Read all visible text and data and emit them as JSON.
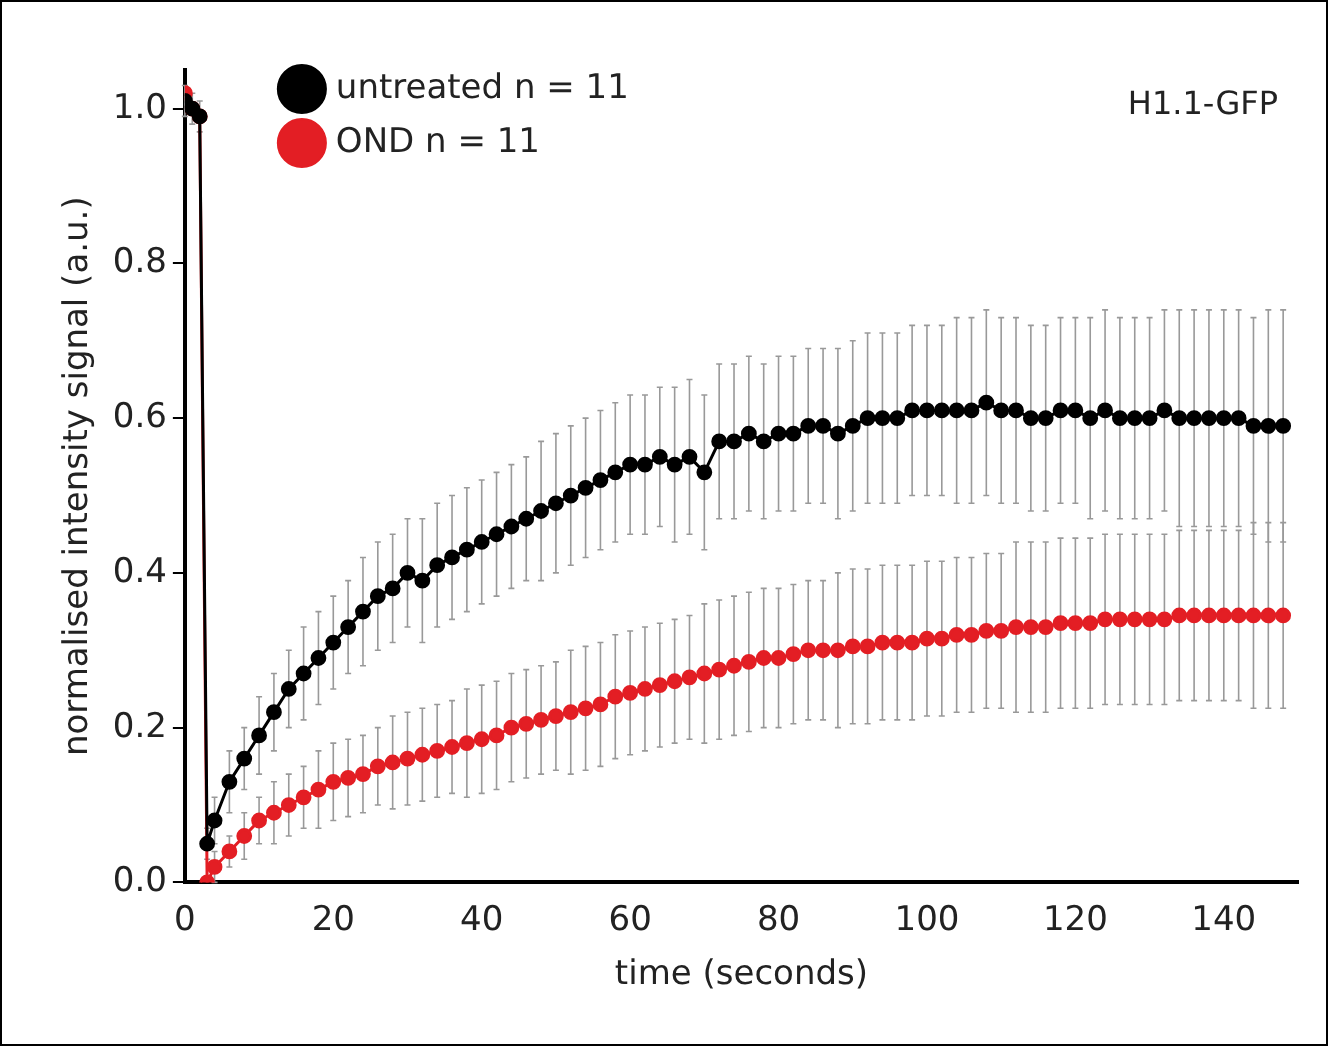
{
  "chart_data": {
    "type": "line",
    "xlabel": "time (seconds)",
    "ylabel": "normalised intensity signal (a.u.)",
    "annotations": [
      "H1.1-GFP"
    ],
    "x": [
      0,
      1,
      2,
      3,
      4,
      6,
      8,
      10,
      12,
      14,
      16,
      18,
      20,
      22,
      24,
      26,
      28,
      30,
      32,
      34,
      36,
      38,
      40,
      42,
      44,
      46,
      48,
      50,
      52,
      54,
      56,
      58,
      60,
      62,
      64,
      66,
      68,
      70,
      72,
      74,
      76,
      78,
      80,
      82,
      84,
      86,
      88,
      90,
      92,
      94,
      96,
      98,
      100,
      102,
      104,
      106,
      108,
      110,
      112,
      114,
      116,
      118,
      120,
      122,
      124,
      126,
      128,
      130,
      132,
      134,
      136,
      138,
      140,
      142,
      144,
      146,
      148
    ],
    "series": [
      {
        "name": "untreated n = 11",
        "color": "#000000",
        "values": [
          1.01,
          1.0,
          0.99,
          0.05,
          0.08,
          0.13,
          0.16,
          0.19,
          0.22,
          0.25,
          0.27,
          0.29,
          0.31,
          0.33,
          0.35,
          0.37,
          0.38,
          0.4,
          0.39,
          0.41,
          0.42,
          0.43,
          0.44,
          0.45,
          0.46,
          0.47,
          0.48,
          0.49,
          0.5,
          0.51,
          0.52,
          0.53,
          0.54,
          0.54,
          0.55,
          0.54,
          0.55,
          0.53,
          0.57,
          0.57,
          0.58,
          0.57,
          0.58,
          0.58,
          0.59,
          0.59,
          0.58,
          0.59,
          0.6,
          0.6,
          0.6,
          0.61,
          0.61,
          0.61,
          0.61,
          0.61,
          0.62,
          0.61,
          0.61,
          0.6,
          0.6,
          0.61,
          0.61,
          0.6,
          0.61,
          0.6,
          0.6,
          0.6,
          0.61,
          0.6,
          0.6,
          0.6,
          0.6,
          0.6,
          0.59,
          0.59,
          0.59
        ],
        "errors": [
          0.02,
          0.02,
          0.02,
          0.02,
          0.03,
          0.04,
          0.04,
          0.05,
          0.05,
          0.05,
          0.06,
          0.06,
          0.06,
          0.06,
          0.07,
          0.07,
          0.07,
          0.07,
          0.08,
          0.08,
          0.08,
          0.08,
          0.08,
          0.08,
          0.08,
          0.08,
          0.09,
          0.09,
          0.09,
          0.09,
          0.09,
          0.09,
          0.09,
          0.09,
          0.09,
          0.1,
          0.1,
          0.1,
          0.1,
          0.1,
          0.1,
          0.1,
          0.1,
          0.1,
          0.1,
          0.1,
          0.11,
          0.11,
          0.11,
          0.11,
          0.11,
          0.11,
          0.11,
          0.11,
          0.12,
          0.12,
          0.12,
          0.12,
          0.12,
          0.12,
          0.12,
          0.12,
          0.12,
          0.13,
          0.13,
          0.13,
          0.13,
          0.13,
          0.13,
          0.14,
          0.14,
          0.14,
          0.14,
          0.14,
          0.14,
          0.15,
          0.15
        ]
      },
      {
        "name": "OND n = 11",
        "color": "#e31e24",
        "values": [
          1.02,
          1.0,
          0.99,
          0.0,
          0.02,
          0.04,
          0.06,
          0.08,
          0.09,
          0.1,
          0.11,
          0.12,
          0.13,
          0.135,
          0.14,
          0.15,
          0.155,
          0.16,
          0.165,
          0.17,
          0.175,
          0.18,
          0.185,
          0.19,
          0.2,
          0.205,
          0.21,
          0.215,
          0.22,
          0.225,
          0.23,
          0.24,
          0.245,
          0.25,
          0.255,
          0.26,
          0.265,
          0.27,
          0.275,
          0.28,
          0.285,
          0.29,
          0.29,
          0.295,
          0.3,
          0.3,
          0.3,
          0.305,
          0.305,
          0.31,
          0.31,
          0.31,
          0.315,
          0.315,
          0.32,
          0.32,
          0.325,
          0.325,
          0.33,
          0.33,
          0.33,
          0.335,
          0.335,
          0.335,
          0.34,
          0.34,
          0.34,
          0.34,
          0.34,
          0.345,
          0.345,
          0.345,
          0.345,
          0.345,
          0.345,
          0.345,
          0.345
        ],
        "errors": [
          null,
          null,
          null,
          null,
          0.02,
          0.02,
          0.03,
          0.03,
          0.04,
          0.04,
          0.04,
          0.05,
          0.05,
          0.05,
          0.05,
          0.05,
          0.06,
          0.06,
          0.06,
          0.06,
          0.06,
          0.07,
          0.07,
          0.07,
          0.07,
          0.07,
          0.07,
          0.07,
          0.08,
          0.08,
          0.08,
          0.08,
          0.08,
          0.08,
          0.08,
          0.08,
          0.08,
          0.09,
          0.09,
          0.09,
          0.09,
          0.09,
          0.09,
          0.09,
          0.09,
          0.09,
          0.1,
          0.1,
          0.1,
          0.1,
          0.1,
          0.1,
          0.1,
          0.1,
          0.1,
          0.1,
          0.1,
          0.1,
          0.11,
          0.11,
          0.11,
          0.11,
          0.11,
          0.11,
          0.11,
          0.11,
          0.11,
          0.11,
          0.11,
          0.11,
          0.11,
          0.11,
          0.11,
          0.11,
          0.12,
          0.12,
          0.12
        ]
      }
    ],
    "xlim": [
      0,
      150
    ],
    "xticks": [
      0,
      20,
      40,
      60,
      80,
      100,
      120,
      140
    ],
    "ylim": [
      0,
      1.05
    ],
    "yticks": [
      {
        "value": 0,
        "label": "0.0"
      },
      {
        "value": 0.2,
        "label": "0.2"
      },
      {
        "value": 0.4,
        "label": "0.4"
      },
      {
        "value": 0.6,
        "label": "0.6"
      },
      {
        "value": 0.8,
        "label": "0.8"
      },
      {
        "value": 1,
        "label": "1.0"
      }
    ],
    "grid": false,
    "legend": "top left",
    "marker": "circle",
    "line_style": "solid"
  }
}
